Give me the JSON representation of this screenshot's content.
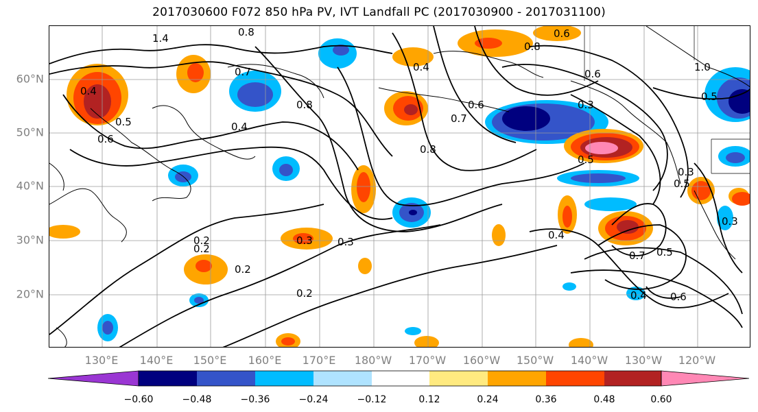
{
  "title": "2017030600 F072 850 hPa PV, IVT Landfall PC (2017030900 - 2017031100)",
  "lat_labels": [
    "60°N",
    "50°N",
    "40°N",
    "30°N",
    "20°N"
  ],
  "lon_labels": [
    "130°E",
    "140°E",
    "150°E",
    "160°E",
    "170°E",
    "180°W",
    "170°W",
    "160°W",
    "150°W",
    "140°W",
    "130°W",
    "120°W"
  ],
  "colorbar": {
    "ticks": [
      "−0.60",
      "−0.48",
      "−0.36",
      "−0.24",
      "−0.12",
      "0.12",
      "0.24",
      "0.36",
      "0.48",
      "0.60"
    ],
    "colors": [
      "#9a36d3",
      "#00007f",
      "#3454c9",
      "#00bcff",
      "#afe3ff",
      "#ffffff",
      "#ffea80",
      "#ffa500",
      "#ff4500",
      "#b22222",
      "#ff88b5"
    ],
    "extend": "both"
  },
  "contour_labels": [
    "1.4",
    "0.8",
    "0.6",
    "0.8",
    "0.6",
    "1.0",
    "0.5",
    "0.3",
    "0.7",
    "0.8",
    "0.5",
    "0.4",
    "0.3",
    "0.7",
    "0.2",
    "0.3",
    "0.2",
    "0.2",
    "0.6",
    "0.4",
    "0.5",
    "0.7",
    "0.6",
    "0.4",
    "0.6",
    "0.5",
    "0.3",
    "0.8",
    "0.5",
    "0.4",
    "0.2",
    "0.4",
    "0.3"
  ]
}
